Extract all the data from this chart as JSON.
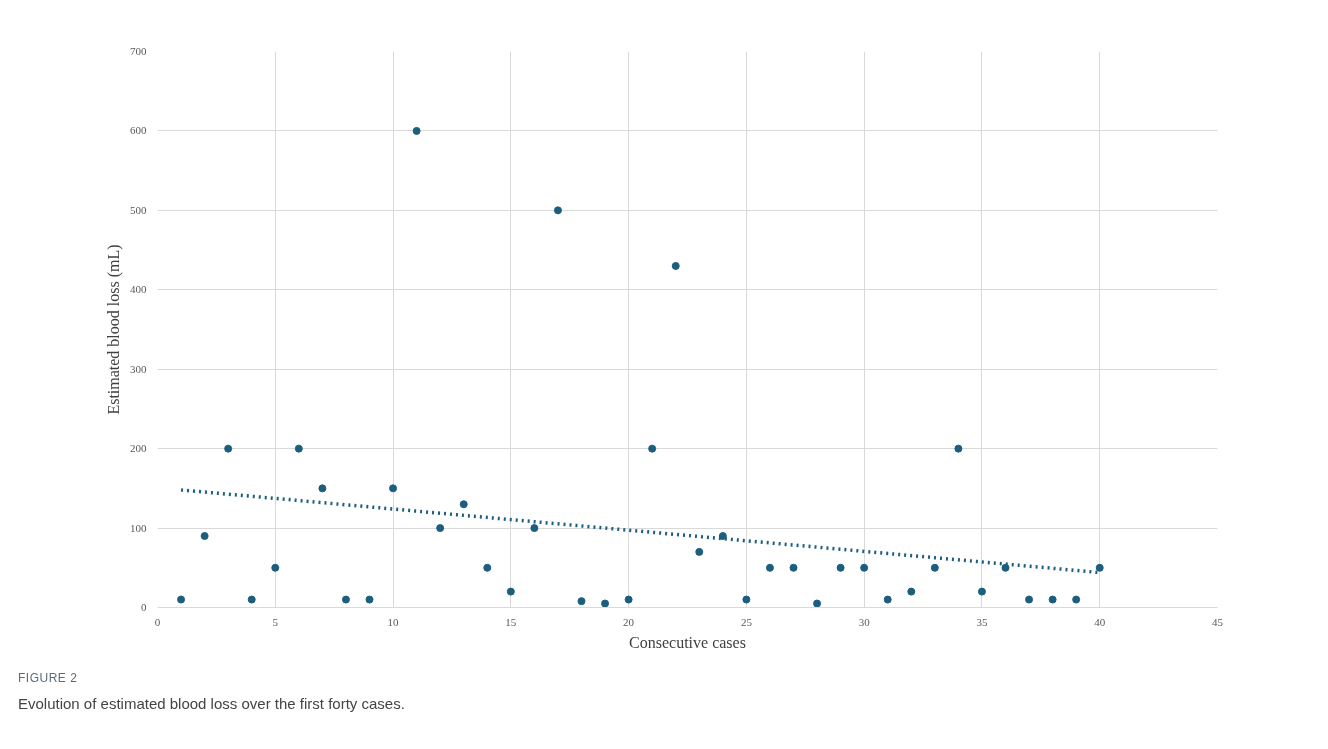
{
  "chart_data": {
    "type": "scatter",
    "xlabel": "Consecutive cases",
    "ylabel": "Estimated blood loss (mL)",
    "xlim": [
      0,
      45
    ],
    "xticks": [
      0,
      5,
      10,
      15,
      20,
      25,
      30,
      35,
      40,
      45
    ],
    "ylim": [
      0,
      700
    ],
    "yticks": [
      0,
      100,
      200,
      300,
      400,
      500,
      600,
      700
    ],
    "grid": true,
    "annotations": [
      "FIGURE 2",
      "Evolution of estimated blood loss over the first forty cases."
    ],
    "series": [
      {
        "color": "#1b5e7e",
        "marker": "circle",
        "x": [
          1,
          2,
          3,
          4,
          5,
          6,
          7,
          8,
          9,
          10,
          11,
          12,
          13,
          14,
          15,
          16,
          17,
          18,
          19,
          20,
          21,
          22,
          23,
          24,
          25,
          26,
          27,
          28,
          29,
          30,
          31,
          32,
          33,
          34,
          35,
          36,
          37,
          38,
          39,
          40
        ],
        "values": [
          10,
          90,
          200,
          10,
          50,
          200,
          150,
          10,
          10,
          150,
          600,
          100,
          130,
          50,
          20,
          100,
          500,
          8,
          5,
          10,
          200,
          430,
          70,
          90,
          10,
          50,
          50,
          5,
          50,
          50,
          10,
          20,
          50,
          200,
          20,
          50,
          10,
          10,
          10,
          50
        ]
      },
      {
        "type": "line",
        "color": "#1b5e7e",
        "marker": "none",
        "line_style": "dotted",
        "x": [
          1,
          40
        ],
        "values": [
          148,
          44
        ]
      }
    ]
  }
}
